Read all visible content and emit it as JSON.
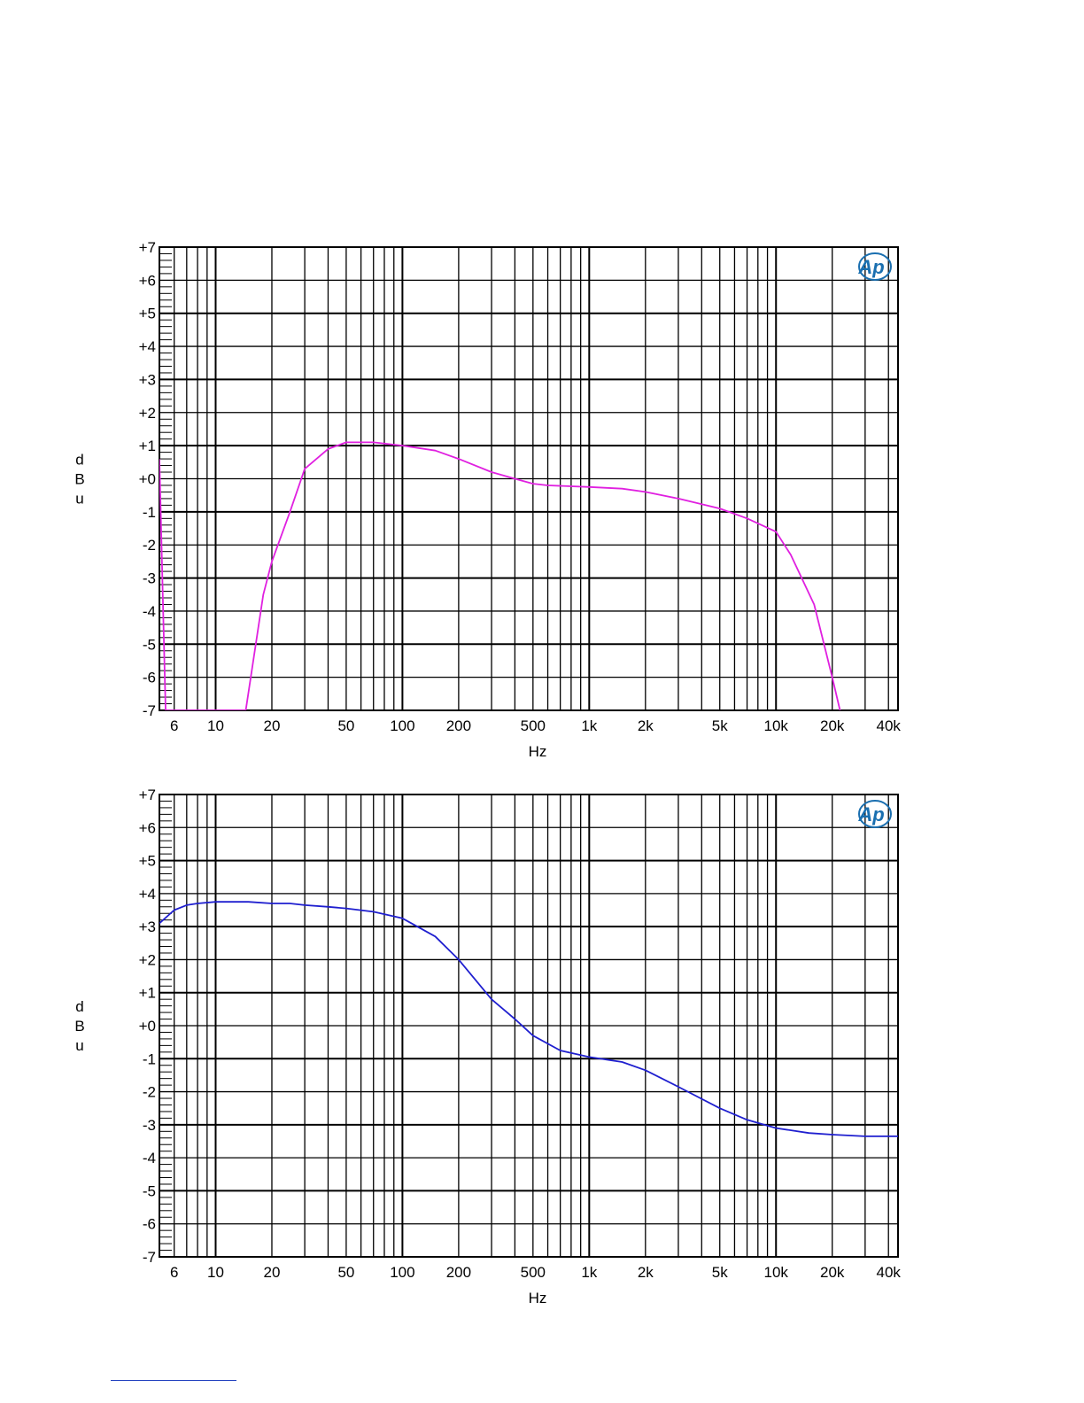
{
  "logo_text": "Ap",
  "chart_data": [
    {
      "type": "line",
      "ylabel": "dBu",
      "xlabel": "Hz",
      "x_scale": "log",
      "xlim": [
        5,
        45000
      ],
      "ylim": [
        -7,
        7
      ],
      "grid": true,
      "y_ticks": [
        {
          "v": 7,
          "label": "+7"
        },
        {
          "v": 6,
          "label": "+6"
        },
        {
          "v": 5,
          "label": "+5"
        },
        {
          "v": 4,
          "label": "+4"
        },
        {
          "v": 3,
          "label": "+3"
        },
        {
          "v": 2,
          "label": "+2"
        },
        {
          "v": 1,
          "label": "+1"
        },
        {
          "v": 0,
          "label": "+0"
        },
        {
          "v": -1,
          "label": "-1"
        },
        {
          "v": -2,
          "label": "-2"
        },
        {
          "v": -3,
          "label": "-3"
        },
        {
          "v": -4,
          "label": "-4"
        },
        {
          "v": -5,
          "label": "-5"
        },
        {
          "v": -6,
          "label": "-6"
        },
        {
          "v": -7,
          "label": "-7"
        }
      ],
      "x_ticks": [
        {
          "v": 6,
          "label": "6"
        },
        {
          "v": 10,
          "label": "10"
        },
        {
          "v": 20,
          "label": "20"
        },
        {
          "v": 50,
          "label": "50"
        },
        {
          "v": 100,
          "label": "100"
        },
        {
          "v": 200,
          "label": "200"
        },
        {
          "v": 500,
          "label": "500"
        },
        {
          "v": 1000,
          "label": "1k"
        },
        {
          "v": 2000,
          "label": "2k"
        },
        {
          "v": 5000,
          "label": "5k"
        },
        {
          "v": 10000,
          "label": "10k"
        },
        {
          "v": 20000,
          "label": "20k"
        },
        {
          "v": 40000,
          "label": "40k"
        }
      ],
      "series": [
        {
          "color": "#e020e0",
          "x": [
            5.0,
            5.4,
            14.5,
            18,
            20,
            25,
            30,
            40,
            50,
            70,
            100,
            150,
            200,
            300,
            400,
            500,
            600,
            1000,
            1500,
            2000,
            3000,
            5000,
            7000,
            10000,
            12000,
            16000,
            20000,
            22000
          ],
          "y": [
            0.6,
            -7.0,
            -7.0,
            -3.5,
            -2.5,
            -1.0,
            0.3,
            0.9,
            1.1,
            1.1,
            1.0,
            0.85,
            0.6,
            0.2,
            0.0,
            -0.15,
            -0.2,
            -0.25,
            -0.3,
            -0.4,
            -0.6,
            -0.9,
            -1.2,
            -1.6,
            -2.3,
            -3.8,
            -6.0,
            -7.0
          ]
        }
      ]
    },
    {
      "type": "line",
      "ylabel": "dBu",
      "xlabel": "Hz",
      "x_scale": "log",
      "xlim": [
        5,
        45000
      ],
      "ylim": [
        -7,
        7
      ],
      "grid": true,
      "y_ticks": [
        {
          "v": 7,
          "label": "+7"
        },
        {
          "v": 6,
          "label": "+6"
        },
        {
          "v": 5,
          "label": "+5"
        },
        {
          "v": 4,
          "label": "+4"
        },
        {
          "v": 3,
          "label": "+3"
        },
        {
          "v": 2,
          "label": "+2"
        },
        {
          "v": 1,
          "label": "+1"
        },
        {
          "v": 0,
          "label": "+0"
        },
        {
          "v": -1,
          "label": "-1"
        },
        {
          "v": -2,
          "label": "-2"
        },
        {
          "v": -3,
          "label": "-3"
        },
        {
          "v": -4,
          "label": "-4"
        },
        {
          "v": -5,
          "label": "-5"
        },
        {
          "v": -6,
          "label": "-6"
        },
        {
          "v": -7,
          "label": "-7"
        }
      ],
      "x_ticks": [
        {
          "v": 6,
          "label": "6"
        },
        {
          "v": 10,
          "label": "10"
        },
        {
          "v": 20,
          "label": "20"
        },
        {
          "v": 50,
          "label": "50"
        },
        {
          "v": 100,
          "label": "100"
        },
        {
          "v": 200,
          "label": "200"
        },
        {
          "v": 500,
          "label": "500"
        },
        {
          "v": 1000,
          "label": "1k"
        },
        {
          "v": 2000,
          "label": "2k"
        },
        {
          "v": 5000,
          "label": "5k"
        },
        {
          "v": 10000,
          "label": "10k"
        },
        {
          "v": 20000,
          "label": "20k"
        },
        {
          "v": 40000,
          "label": "40k"
        }
      ],
      "series": [
        {
          "color": "#1f1fcf",
          "x": [
            5,
            6,
            7,
            8,
            10,
            12,
            15,
            20,
            25,
            30,
            40,
            50,
            70,
            100,
            150,
            200,
            300,
            400,
            500,
            700,
            1000,
            1500,
            2000,
            3000,
            5000,
            7000,
            10000,
            15000,
            20000,
            30000,
            45000
          ],
          "y": [
            3.1,
            3.5,
            3.65,
            3.7,
            3.75,
            3.75,
            3.75,
            3.7,
            3.7,
            3.65,
            3.6,
            3.55,
            3.45,
            3.25,
            2.7,
            2.0,
            0.8,
            0.2,
            -0.3,
            -0.75,
            -0.95,
            -1.1,
            -1.35,
            -1.85,
            -2.5,
            -2.85,
            -3.1,
            -3.25,
            -3.3,
            -3.35,
            -3.35
          ]
        }
      ]
    }
  ]
}
